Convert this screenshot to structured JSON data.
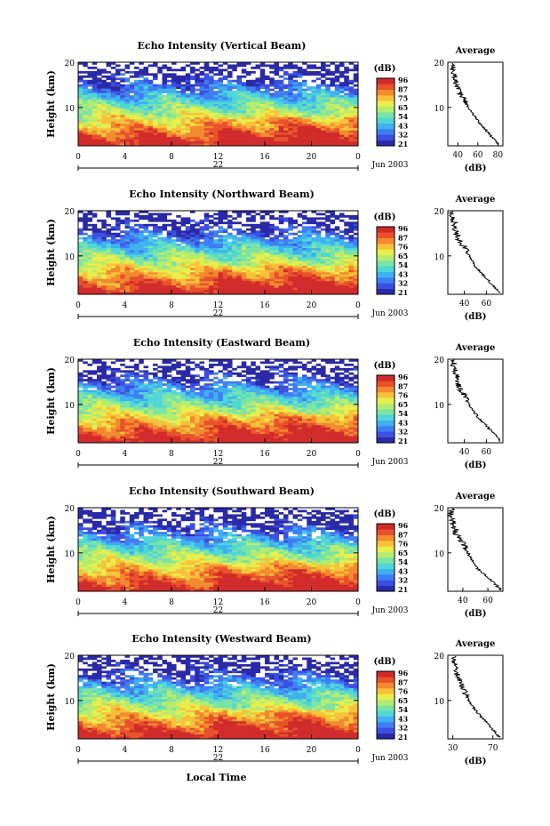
{
  "shared": {
    "x_label": "Local Time",
    "ylabel": "Height (km)",
    "date_label": "Jun 2003",
    "day_label": "22",
    "cb_unit": "(dB)",
    "avg_title": "Average",
    "avg_xlabel": "(dB)",
    "x_ticks": [
      "0",
      "4",
      "8",
      "12",
      "16",
      "20",
      "0"
    ],
    "y_ticks": [
      "20",
      "10"
    ],
    "colorbar_colors": [
      "#2a2aa8",
      "#3b4fe0",
      "#3f7df2",
      "#3fb0f0",
      "#4fd6d6",
      "#7ce3a6",
      "#b6ec6e",
      "#e8ee4c",
      "#f7c23a",
      "#f28a2e",
      "#e8512a",
      "#d12a2a"
    ]
  },
  "chart_data": [
    {
      "type": "heatmap",
      "title": "Echo Intensity (Vertical Beam)",
      "xlabel": "",
      "ylabel": "Height (km)",
      "xlim": [
        0,
        24
      ],
      "ylim": [
        1.5,
        20
      ],
      "colorbar_ticks": [
        "96",
        "87",
        "75",
        "65",
        "54",
        "43",
        "32",
        "21"
      ],
      "profile": {
        "title": "Average",
        "xlabel": "(dB)",
        "x_ticks": [
          "40",
          "60",
          "80"
        ],
        "xlim": [
          30,
          85
        ],
        "heights": [
          2,
          3,
          4,
          5,
          6,
          7,
          8,
          9,
          10,
          11,
          12,
          13,
          14,
          15,
          16,
          17,
          18,
          19,
          20
        ],
        "values": [
          80,
          76,
          72,
          68,
          64,
          60,
          57,
          54,
          51,
          48,
          46,
          42,
          40,
          38,
          37,
          36,
          35,
          35,
          34
        ]
      }
    },
    {
      "type": "heatmap",
      "title": "Echo Intensity (Northward Beam)",
      "xlabel": "",
      "ylabel": "Height (km)",
      "xlim": [
        0,
        24
      ],
      "ylim": [
        1.5,
        20
      ],
      "colorbar_ticks": [
        "96",
        "87",
        "76",
        "65",
        "54",
        "43",
        "32",
        "21"
      ],
      "profile": {
        "title": "Average",
        "xlabel": "(dB)",
        "x_ticks": [
          "40",
          "60"
        ],
        "xlim": [
          25,
          75
        ],
        "heights": [
          2,
          3,
          4,
          5,
          6,
          7,
          8,
          9,
          10,
          11,
          12,
          13,
          14,
          15,
          16,
          17,
          18,
          19,
          20
        ],
        "values": [
          72,
          68,
          64,
          60,
          56,
          52,
          49,
          47,
          44,
          42,
          40,
          36,
          34,
          33,
          32,
          31,
          30,
          29,
          29
        ]
      }
    },
    {
      "type": "heatmap",
      "title": "Echo Intensity (Eastward Beam)",
      "xlabel": "",
      "ylabel": "Height (km)",
      "xlim": [
        0,
        24
      ],
      "ylim": [
        1.5,
        20
      ],
      "colorbar_ticks": [
        "96",
        "87",
        "76",
        "65",
        "54",
        "43",
        "32",
        "21"
      ],
      "profile": {
        "title": "Average",
        "xlabel": "(dB)",
        "x_ticks": [
          "40",
          "60"
        ],
        "xlim": [
          25,
          75
        ],
        "heights": [
          2,
          3,
          4,
          5,
          6,
          7,
          8,
          9,
          10,
          11,
          12,
          13,
          14,
          15,
          16,
          17,
          18,
          19,
          20
        ],
        "values": [
          72,
          69,
          65,
          61,
          57,
          53,
          50,
          47,
          44,
          42,
          40,
          37,
          35,
          34,
          33,
          32,
          31,
          30,
          30
        ]
      }
    },
    {
      "type": "heatmap",
      "title": "Echo Intensity (Southward Beam)",
      "xlabel": "",
      "ylabel": "Height (km)",
      "xlim": [
        0,
        24
      ],
      "ylim": [
        1.5,
        20
      ],
      "colorbar_ticks": [
        "96",
        "87",
        "76",
        "65",
        "54",
        "43",
        "32",
        "21"
      ],
      "profile": {
        "title": "Average",
        "xlabel": "(dB)",
        "x_ticks": [
          "40",
          "60"
        ],
        "xlim": [
          28,
          72
        ],
        "heights": [
          2,
          3,
          4,
          5,
          6,
          7,
          8,
          9,
          10,
          11,
          12,
          13,
          14,
          15,
          16,
          17,
          18,
          19,
          20
        ],
        "values": [
          70,
          66,
          62,
          58,
          54,
          50,
          48,
          46,
          44,
          42,
          40,
          37,
          35,
          34,
          33,
          32,
          31,
          31,
          30
        ]
      }
    },
    {
      "type": "heatmap",
      "title": "Echo Intensity (Westward Beam)",
      "xlabel": "Local Time",
      "ylabel": "Height (km)",
      "xlim": [
        0,
        24
      ],
      "ylim": [
        1.5,
        20
      ],
      "colorbar_ticks": [
        "96",
        "87",
        "76",
        "65",
        "54",
        "43",
        "32",
        "21"
      ],
      "profile": {
        "title": "Average",
        "xlabel": "(dB)",
        "x_ticks": [
          "30",
          "70"
        ],
        "xlim": [
          25,
          80
        ],
        "heights": [
          2,
          3,
          4,
          5,
          6,
          7,
          8,
          9,
          10,
          11,
          12,
          13,
          14,
          15,
          16,
          17,
          18,
          19,
          20
        ],
        "values": [
          76,
          72,
          68,
          64,
          60,
          56,
          52,
          49,
          46,
          44,
          42,
          39,
          37,
          35,
          34,
          33,
          32,
          32,
          31
        ]
      }
    }
  ]
}
